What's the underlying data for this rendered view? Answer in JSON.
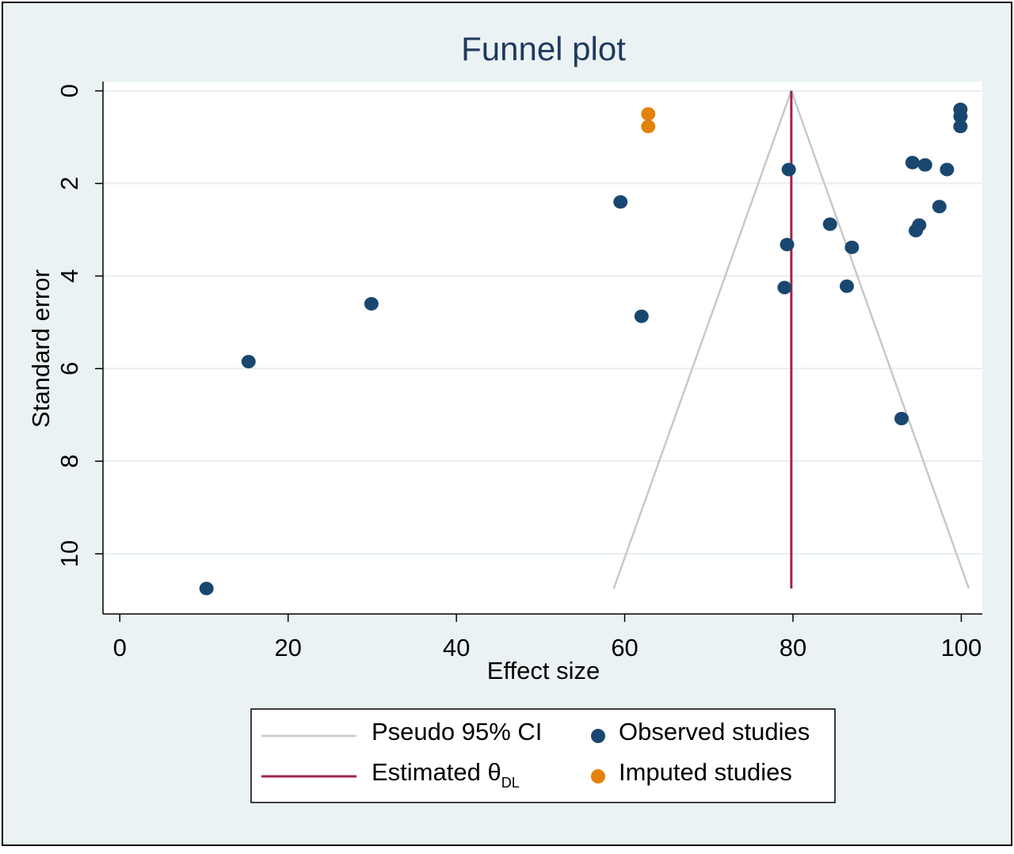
{
  "chart_data": {
    "type": "scatter",
    "title": "Funnel plot",
    "xlabel": "Effect size",
    "ylabel": "Standard error",
    "xlim": [
      -2,
      102.5
    ],
    "ylim": [
      11.3,
      -0.2
    ],
    "y_reversed": true,
    "xticks": [
      0,
      20,
      40,
      60,
      80,
      100
    ],
    "yticks": [
      0,
      2,
      4,
      6,
      8,
      10
    ],
    "grid": true,
    "legend_position": "bottom",
    "estimate": {
      "label_main": "Estimated θ",
      "label_sub": "DL",
      "x": 79.8,
      "color": "#a0244a"
    },
    "pseudo_ci": {
      "label": "Pseudo 95% CI",
      "apex": [
        79.8,
        0
      ],
      "left_end": [
        58.7,
        10.75
      ],
      "right_end": [
        100.9,
        10.75
      ],
      "color": "#c8c8c8"
    },
    "series": [
      {
        "name": "Observed studies",
        "color": "#1a476f",
        "points": [
          [
            10.3,
            10.75
          ],
          [
            15.3,
            5.85
          ],
          [
            29.9,
            4.6
          ],
          [
            59.5,
            2.4
          ],
          [
            62.0,
            4.87
          ],
          [
            79.5,
            1.7
          ],
          [
            79.3,
            3.32
          ],
          [
            79.0,
            4.25
          ],
          [
            84.4,
            2.88
          ],
          [
            86.4,
            4.22
          ],
          [
            87.0,
            3.38
          ],
          [
            92.9,
            7.08
          ],
          [
            94.2,
            1.55
          ],
          [
            94.6,
            3.02
          ],
          [
            95.0,
            2.9
          ],
          [
            95.7,
            1.6
          ],
          [
            97.4,
            2.5
          ],
          [
            98.3,
            1.7
          ],
          [
            99.9,
            0.4
          ],
          [
            99.9,
            0.55
          ],
          [
            99.9,
            0.77
          ]
        ]
      },
      {
        "name": "Imputed studies",
        "color": "#e2820a",
        "points": [
          [
            62.8,
            0.5
          ],
          [
            62.8,
            0.77
          ]
        ]
      }
    ]
  }
}
